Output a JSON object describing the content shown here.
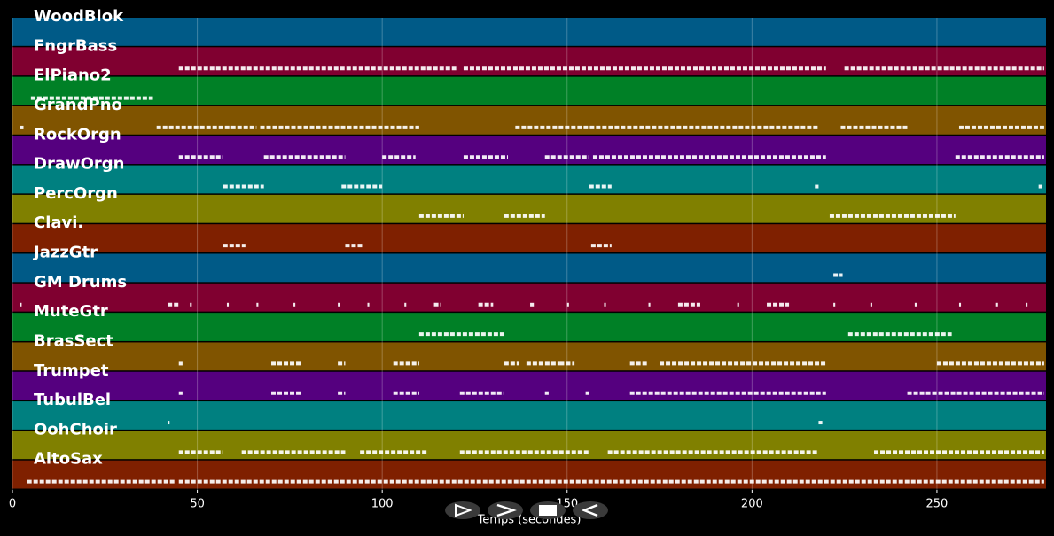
{
  "chart_data": {
    "type": "pianoroll",
    "x_label": "Temps (secondes)",
    "xlim": [
      0,
      279.5
    ],
    "xticks": [
      0,
      50,
      100,
      150,
      200,
      250
    ],
    "grid": true,
    "tracks": [
      {
        "name": "WoodBlok",
        "color": "#005a87",
        "notes": []
      },
      {
        "name": "FngrBass",
        "color": "#800030",
        "notes": [
          [
            45,
            120
          ],
          [
            122,
            220
          ],
          [
            225,
            279
          ]
        ]
      },
      {
        "name": "ElPiano2",
        "color": "#008026",
        "notes": [
          [
            5,
            38
          ]
        ]
      },
      {
        "name": "GrandPno",
        "color": "#805400",
        "notes": [
          [
            2,
            3
          ],
          [
            39,
            66
          ],
          [
            67,
            110
          ],
          [
            136,
            218
          ],
          [
            224,
            242
          ],
          [
            256,
            279
          ]
        ]
      },
      {
        "name": "RockOrgn",
        "color": "#55007f",
        "notes": [
          [
            45,
            57
          ],
          [
            68,
            90
          ],
          [
            100,
            109
          ],
          [
            122,
            134
          ],
          [
            144,
            156
          ],
          [
            157,
            220
          ],
          [
            255,
            279
          ]
        ]
      },
      {
        "name": "DrawOrgn",
        "color": "#008080",
        "notes": [
          [
            57,
            68
          ],
          [
            89,
            100
          ],
          [
            156,
            162
          ],
          [
            217,
            218
          ],
          [
            277.5,
            278.5
          ]
        ]
      },
      {
        "name": "PercOrgn",
        "color": "#808000",
        "notes": [
          [
            110,
            122
          ],
          [
            133,
            144
          ],
          [
            221,
            255
          ]
        ]
      },
      {
        "name": "Clavi.",
        "color": "#7f2000",
        "notes": [
          [
            57,
            63
          ],
          [
            90,
            95
          ],
          [
            156.5,
            162
          ]
        ]
      },
      {
        "name": "JazzGtr",
        "color": "#005a87",
        "notes": [
          [
            222,
            224.5
          ]
        ]
      },
      {
        "name": "GM Drums",
        "color": "#800030",
        "notes": [
          [
            2,
            2.5
          ],
          [
            42,
            45
          ],
          [
            48,
            48.5
          ],
          [
            58,
            58.5
          ],
          [
            66,
            66.5
          ],
          [
            76,
            76.5
          ],
          [
            88,
            88.5
          ],
          [
            96,
            96.5
          ],
          [
            106,
            106.5
          ],
          [
            114,
            116
          ],
          [
            126,
            130
          ],
          [
            140,
            141
          ],
          [
            150,
            150.5
          ],
          [
            160,
            160.5
          ],
          [
            172,
            172.5
          ],
          [
            180,
            186
          ],
          [
            196,
            196.5
          ],
          [
            204,
            210
          ],
          [
            222,
            222.5
          ],
          [
            232,
            232.5
          ],
          [
            244,
            244.5
          ],
          [
            256,
            256.5
          ],
          [
            266,
            266.5
          ],
          [
            274,
            274.5
          ]
        ]
      },
      {
        "name": "MuteGtr",
        "color": "#008026",
        "notes": [
          [
            110,
            133
          ],
          [
            226,
            254
          ]
        ]
      },
      {
        "name": "BrasSect",
        "color": "#805400",
        "notes": [
          [
            45,
            46
          ],
          [
            70,
            78
          ],
          [
            88,
            90
          ],
          [
            103,
            110
          ],
          [
            133,
            137
          ],
          [
            139,
            148
          ],
          [
            148,
            152
          ],
          [
            167,
            172
          ],
          [
            175,
            220
          ],
          [
            250,
            279
          ]
        ]
      },
      {
        "name": "Trumpet",
        "color": "#55007f",
        "notes": [
          [
            45,
            46
          ],
          [
            70,
            78
          ],
          [
            88,
            90
          ],
          [
            103,
            110
          ],
          [
            121,
            133
          ],
          [
            144,
            145
          ],
          [
            155,
            156
          ],
          [
            167,
            220
          ],
          [
            242,
            279
          ]
        ]
      },
      {
        "name": "TubulBel",
        "color": "#008080",
        "notes": [
          [
            42,
            42.5
          ],
          [
            218,
            219
          ]
        ]
      },
      {
        "name": "OohChoir",
        "color": "#808000",
        "notes": [
          [
            45,
            57
          ],
          [
            62,
            90
          ],
          [
            94,
            112
          ],
          [
            121,
            156
          ],
          [
            161,
            218
          ],
          [
            233,
            279
          ]
        ]
      },
      {
        "name": "AltoSax",
        "color": "#7f2000",
        "notes": [
          [
            4,
            44
          ],
          [
            45,
            279
          ]
        ]
      }
    ]
  }
}
